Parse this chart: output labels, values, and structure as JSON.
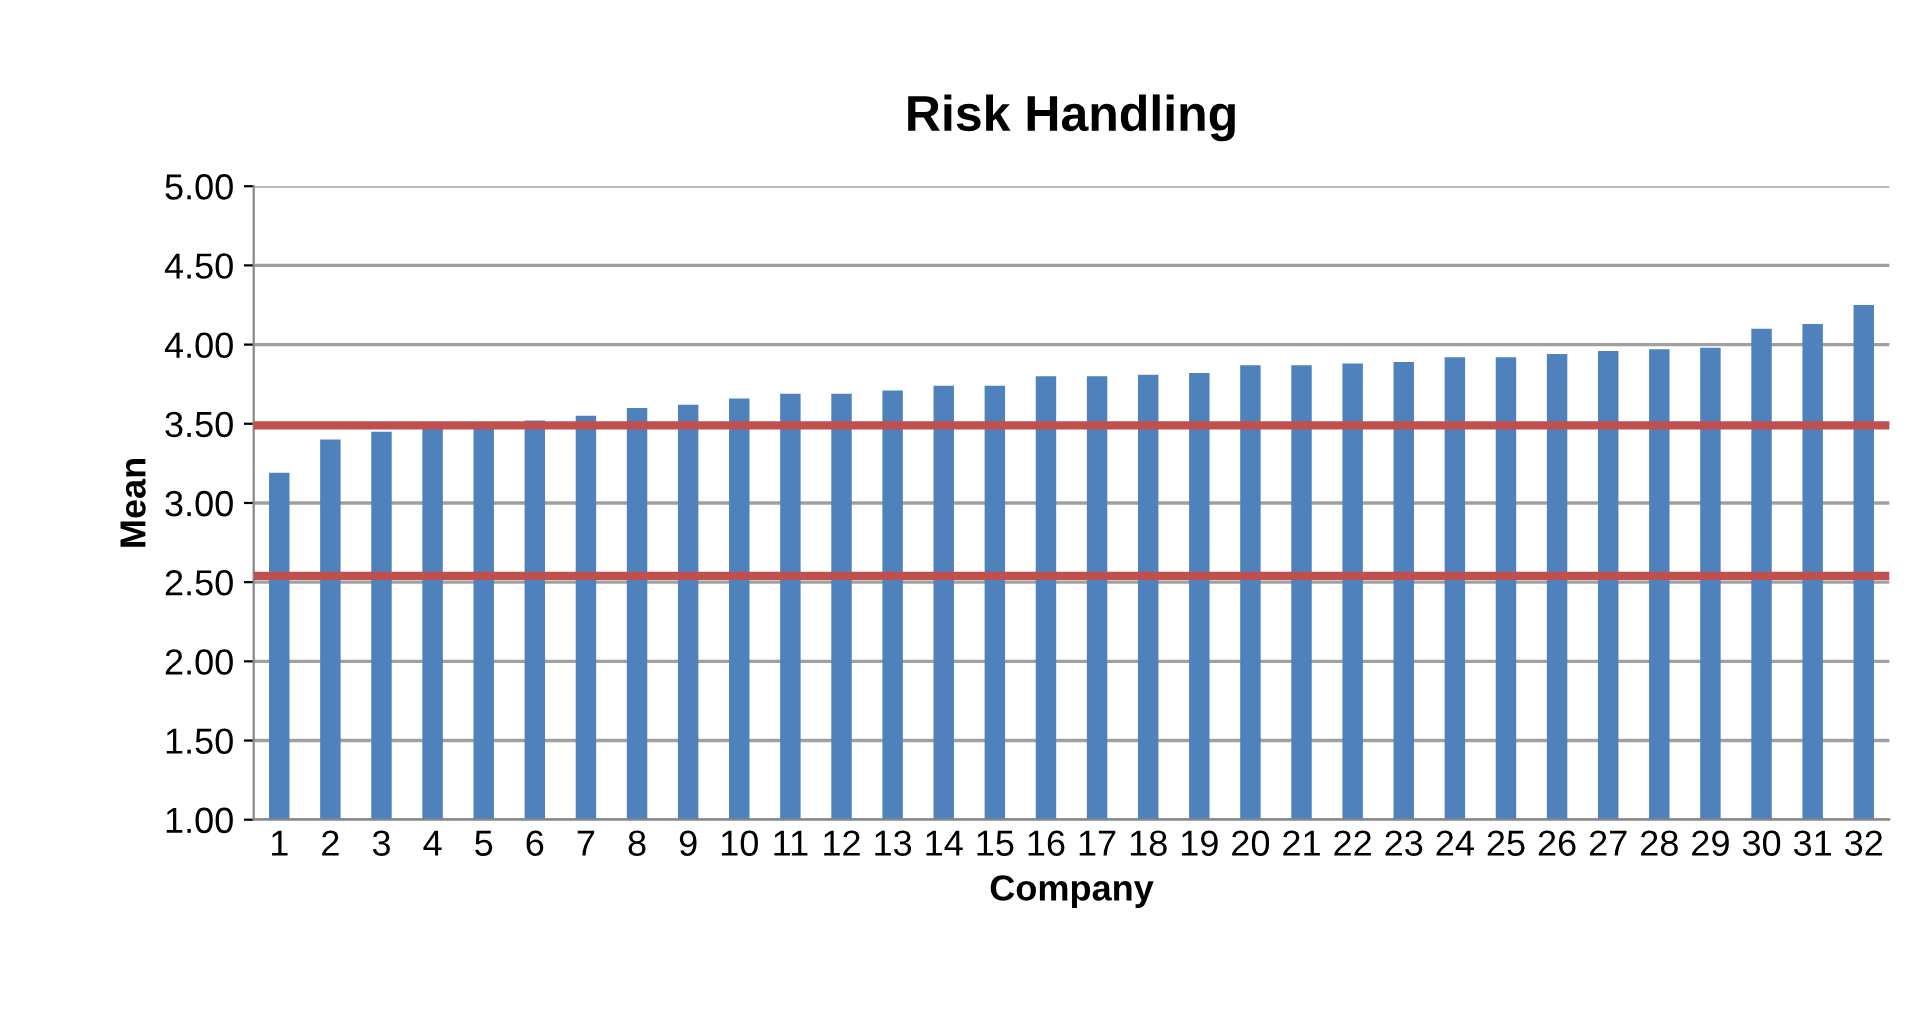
{
  "chart_data": {
    "type": "bar",
    "title": "Risk Handling",
    "xlabel": "Company",
    "ylabel": "Mean",
    "categories": [
      "1",
      "2",
      "3",
      "4",
      "5",
      "6",
      "7",
      "8",
      "9",
      "10",
      "11",
      "12",
      "13",
      "14",
      "15",
      "16",
      "17",
      "18",
      "19",
      "20",
      "21",
      "22",
      "23",
      "24",
      "25",
      "26",
      "27",
      "28",
      "29",
      "30",
      "31",
      "32"
    ],
    "values": [
      3.19,
      3.4,
      3.45,
      3.48,
      3.48,
      3.52,
      3.55,
      3.6,
      3.62,
      3.66,
      3.69,
      3.69,
      3.71,
      3.74,
      3.74,
      3.8,
      3.8,
      3.81,
      3.82,
      3.87,
      3.87,
      3.88,
      3.89,
      3.92,
      3.92,
      3.94,
      3.96,
      3.97,
      3.98,
      4.1,
      4.13,
      4.25
    ],
    "color": "#4f81bd",
    "ylim": [
      1.0,
      5.0
    ],
    "yticks": [
      {
        "value": 1.0,
        "label": "1.00"
      },
      {
        "value": 1.5,
        "label": "1.50"
      },
      {
        "value": 2.0,
        "label": "2.00"
      },
      {
        "value": 2.5,
        "label": "2.50"
      },
      {
        "value": 3.0,
        "label": "3.00"
      },
      {
        "value": 3.5,
        "label": "3.50"
      },
      {
        "value": 4.0,
        "label": "4.00"
      },
      {
        "value": 4.5,
        "label": "4.50"
      },
      {
        "value": 5.0,
        "label": "5.00"
      }
    ],
    "grid": "y",
    "ref_lines": [
      {
        "axis": "y",
        "value": 3.49,
        "color": "#c0504d"
      },
      {
        "axis": "y",
        "value": 2.54,
        "color": "#c0504d"
      }
    ]
  }
}
